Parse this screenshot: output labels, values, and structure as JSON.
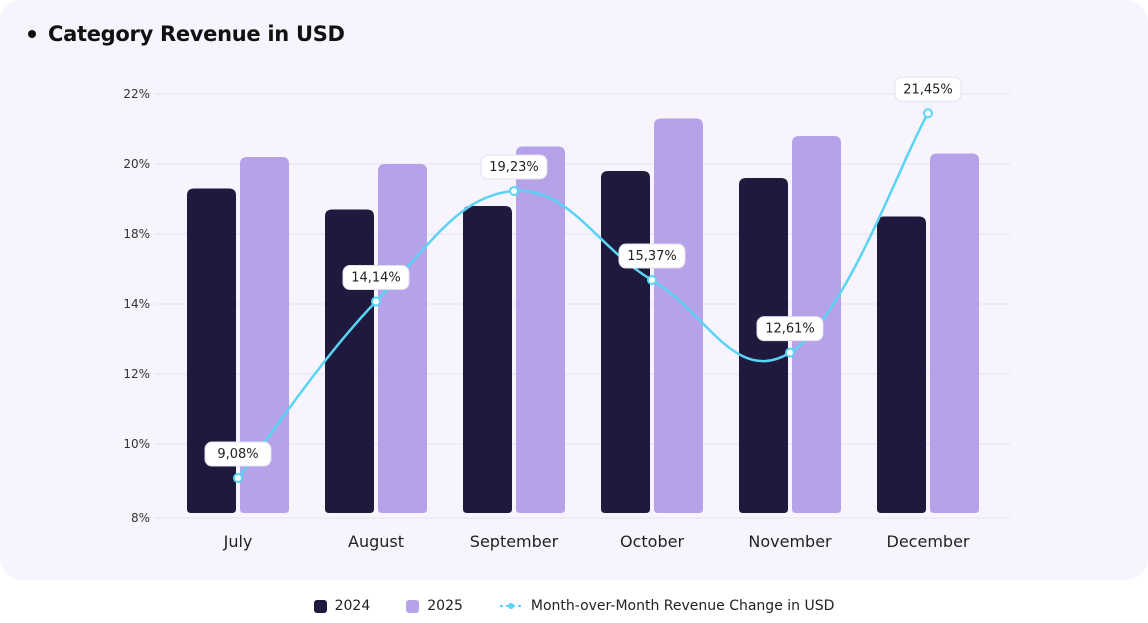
{
  "title": "Category Revenue in USD",
  "colors": {
    "series_2024": "#1f1a3d",
    "series_2025": "#b5a2e9",
    "line": "#5ad4f5",
    "grid": "#e6e1f0",
    "card": "#f7f4fd"
  },
  "legend": {
    "item_2024": "2024",
    "item_2025": "2025",
    "item_line": "Month-over-Month Revenue Change in USD"
  },
  "chart_data": {
    "type": "bar",
    "categories": [
      "July",
      "August",
      "September",
      "October",
      "November",
      "December"
    ],
    "y_ticks": [
      "8%",
      "10%",
      "12%",
      "14%",
      "18%",
      "20%",
      "22%"
    ],
    "series": [
      {
        "name": "2024",
        "kind": "bar",
        "values": [
          19.3,
          18.7,
          18.8,
          19.8,
          19.6,
          18.5
        ]
      },
      {
        "name": "2025",
        "kind": "bar",
        "values": [
          20.2,
          20.0,
          20.5,
          21.3,
          20.8,
          20.3
        ]
      },
      {
        "name": "Month-over-Month Revenue Change in USD",
        "kind": "line",
        "values": [
          9.08,
          14.14,
          19.23,
          15.37,
          12.61,
          21.45
        ],
        "labels": [
          "9,08%",
          "14,14%",
          "19,23%",
          "15,37%",
          "12,61%",
          "21,45%"
        ]
      }
    ],
    "grid": true,
    "legend_position": "bottom"
  }
}
